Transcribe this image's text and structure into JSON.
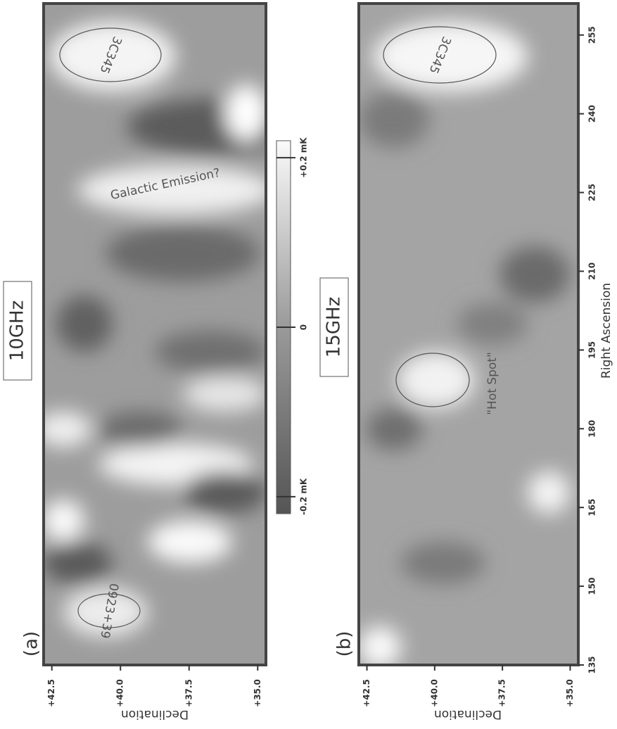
{
  "chart_data": [
    {
      "type": "map",
      "panel_label": "(a)",
      "title": "10GHz",
      "ylabel": "Declination",
      "xlim": [
        135,
        261
      ],
      "ylim": [
        34.7,
        42.8
      ],
      "yticks": [
        {
          "value": 42.5,
          "label": "+42.5"
        },
        {
          "value": 40.0,
          "label": "+40.0"
        },
        {
          "value": 37.5,
          "label": "+37.5"
        },
        {
          "value": 35.0,
          "label": "+35.0"
        }
      ],
      "sources": [
        "3C345",
        "0923+39"
      ],
      "annotations": [
        "Galactic Emission?"
      ]
    },
    {
      "type": "map",
      "panel_label": "(b)",
      "title": "15GHz",
      "xlabel": "Right Ascension",
      "ylabel": "Declination",
      "xlim": [
        135,
        261
      ],
      "ylim": [
        34.7,
        42.8
      ],
      "xticks": [
        135,
        150,
        165,
        180,
        195,
        210,
        225,
        240,
        255
      ],
      "yticks": [
        {
          "value": 42.5,
          "label": "+42.5"
        },
        {
          "value": 40.0,
          "label": "+40.0"
        },
        {
          "value": 37.5,
          "label": "+37.5"
        },
        {
          "value": 35.0,
          "label": "+35.0"
        }
      ],
      "sources": [
        "3C345"
      ],
      "annotations": [
        "\"Hot Spot\""
      ]
    }
  ],
  "colorbar": {
    "lim": [
      -0.22,
      0.22
    ],
    "ticks": [
      {
        "value": 0.2,
        "label": "+0.2 mK"
      },
      {
        "value": 0,
        "label": "0"
      },
      {
        "value": -0.2,
        "label": "-0.2 mK"
      }
    ]
  }
}
